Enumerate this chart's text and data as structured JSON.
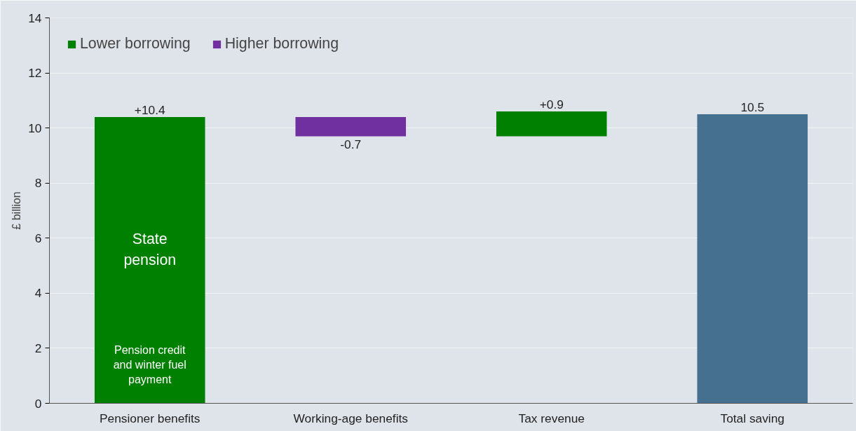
{
  "chart_data": {
    "type": "bar",
    "ylabel": "£ billion",
    "categories": [
      "Pensioner benefits",
      "Working-age benefits",
      "Tax revenue",
      "Total saving"
    ],
    "series": [
      {
        "name": "Lower borrowing",
        "color": "#008000",
        "values": [
          10.4,
          null,
          0.9,
          null
        ],
        "base": [
          0,
          null,
          9.7,
          null
        ],
        "value_labels": [
          "+10.4",
          null,
          "+0.9",
          null
        ]
      },
      {
        "name": "Higher borrowing",
        "color": "#7030a0",
        "values": [
          null,
          -0.7,
          null,
          null
        ],
        "base": [
          null,
          10.4,
          null,
          null
        ],
        "value_labels": [
          null,
          "-0.7",
          null,
          null
        ]
      },
      {
        "color": "#46708f",
        "values": [
          null,
          null,
          null,
          10.5
        ],
        "base": [
          null,
          null,
          null,
          0
        ],
        "value_labels": [
          null,
          null,
          null,
          "10.5"
        ]
      }
    ],
    "annotations": [
      "State pension",
      "Pension credit and winter fuel payment"
    ],
    "ylim": [
      0,
      14
    ],
    "yticks": [
      0,
      2,
      4,
      6,
      8,
      10,
      12,
      14
    ],
    "grid": "y",
    "legend": "top left"
  }
}
